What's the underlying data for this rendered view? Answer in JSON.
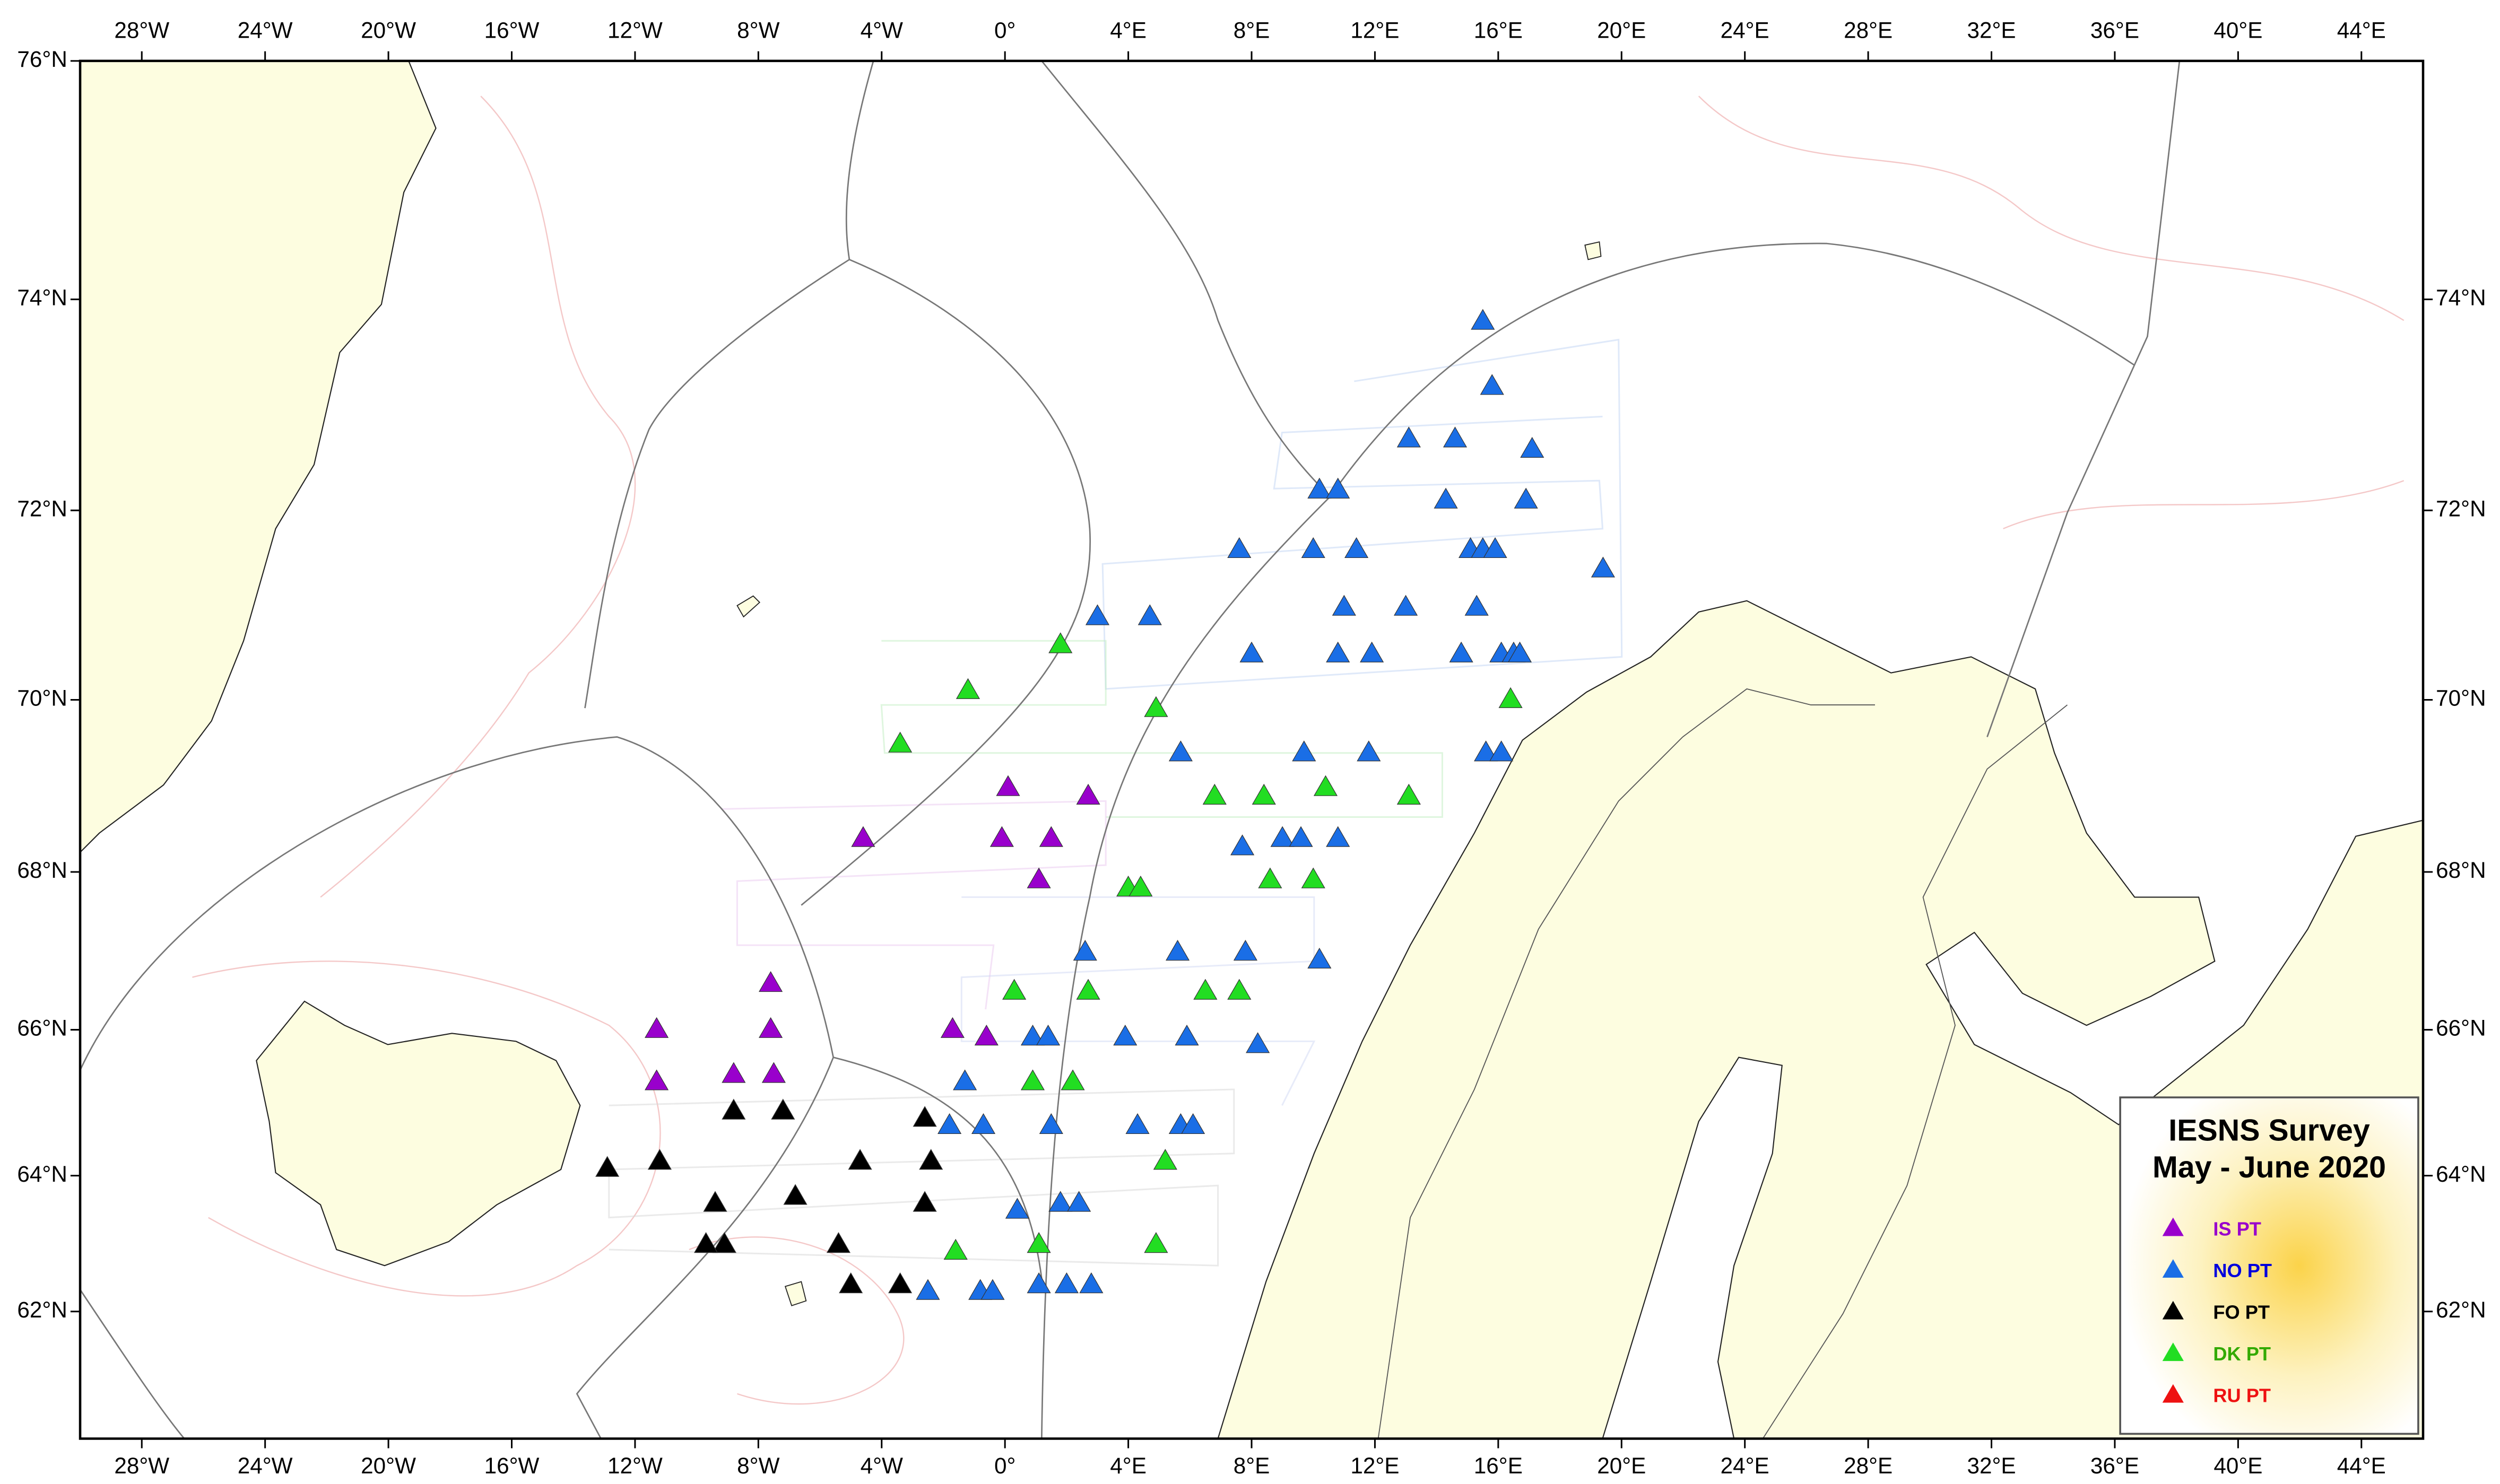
{
  "map": {
    "lon_range": [
      -30,
      46
    ],
    "lat_range": [
      60,
      76
    ],
    "lon_ticks": [
      {
        "value": -28,
        "label": "28°W"
      },
      {
        "value": -24,
        "label": "24°W"
      },
      {
        "value": -20,
        "label": "20°W"
      },
      {
        "value": -16,
        "label": "16°W"
      },
      {
        "value": -12,
        "label": "12°W"
      },
      {
        "value": -8,
        "label": "8°W"
      },
      {
        "value": -4,
        "label": "4°W"
      },
      {
        "value": 0,
        "label": "0°"
      },
      {
        "value": 4,
        "label": "4°E"
      },
      {
        "value": 8,
        "label": "8°E"
      },
      {
        "value": 12,
        "label": "12°E"
      },
      {
        "value": 16,
        "label": "16°E"
      },
      {
        "value": 20,
        "label": "20°E"
      },
      {
        "value": 24,
        "label": "24°E"
      },
      {
        "value": 28,
        "label": "28°E"
      },
      {
        "value": 32,
        "label": "32°E"
      },
      {
        "value": 36,
        "label": "36°E"
      },
      {
        "value": 40,
        "label": "40°E"
      },
      {
        "value": 44,
        "label": "44°E"
      }
    ],
    "lat_ticks_left": [
      {
        "value": 76,
        "label": "76°N"
      },
      {
        "value": 74,
        "label": "74°N"
      },
      {
        "value": 72,
        "label": "72°N"
      },
      {
        "value": 70,
        "label": "70°N"
      },
      {
        "value": 68,
        "label": "68°N"
      },
      {
        "value": 66,
        "label": "66°N"
      },
      {
        "value": 64,
        "label": "64°N"
      },
      {
        "value": 62,
        "label": "62°N"
      }
    ],
    "lat_ticks_right": [
      {
        "value": 74,
        "label": "74°N"
      },
      {
        "value": 72,
        "label": "72°N"
      },
      {
        "value": 70,
        "label": "70°N"
      },
      {
        "value": 68,
        "label": "68°N"
      },
      {
        "value": 66,
        "label": "66°N"
      },
      {
        "value": 64,
        "label": "64°N"
      },
      {
        "value": 62,
        "label": "62°N"
      }
    ],
    "legend": {
      "title": [
        "IESNS Survey",
        "May - June 2020"
      ]
    },
    "stations": [
      {
        "name": "IS PT",
        "color": "#9900cc",
        "label_color": "#9900cc",
        "points": [
          [
            0.1,
            69.0
          ],
          [
            2.7,
            68.9
          ],
          [
            -4.6,
            68.4
          ],
          [
            -0.1,
            68.4
          ],
          [
            1.5,
            68.4
          ],
          [
            1.1,
            67.9
          ],
          [
            -7.6,
            66.6
          ],
          [
            -7.6,
            66.0
          ],
          [
            -11.3,
            66.0
          ],
          [
            -7.5,
            65.4
          ],
          [
            -8.8,
            65.4
          ],
          [
            -11.3,
            65.3
          ],
          [
            -1.7,
            66.0
          ],
          [
            -0.6,
            65.9
          ]
        ]
      },
      {
        "name": "NO PT",
        "color": "#1a6ee6",
        "label_color": "#0000dd",
        "points": [
          [
            15.5,
            73.8
          ],
          [
            15.8,
            73.2
          ],
          [
            13.1,
            72.7
          ],
          [
            14.6,
            72.7
          ],
          [
            17.1,
            72.6
          ],
          [
            14.3,
            72.1
          ],
          [
            10.2,
            72.2
          ],
          [
            10.8,
            72.2
          ],
          [
            16.9,
            72.1
          ],
          [
            7.6,
            71.6
          ],
          [
            10.0,
            71.6
          ],
          [
            11.4,
            71.6
          ],
          [
            15.1,
            71.6
          ],
          [
            15.5,
            71.6
          ],
          [
            15.9,
            71.6
          ],
          [
            19.4,
            71.4
          ],
          [
            3.0,
            70.9
          ],
          [
            4.7,
            70.9
          ],
          [
            11.0,
            71.0
          ],
          [
            13.0,
            71.0
          ],
          [
            15.3,
            71.0
          ],
          [
            8.0,
            70.5
          ],
          [
            10.8,
            70.5
          ],
          [
            11.9,
            70.5
          ],
          [
            14.8,
            70.5
          ],
          [
            16.1,
            70.5
          ],
          [
            16.5,
            70.5
          ],
          [
            16.7,
            70.5
          ],
          [
            5.7,
            69.4
          ],
          [
            9.7,
            69.4
          ],
          [
            11.8,
            69.4
          ],
          [
            15.6,
            69.4
          ],
          [
            16.1,
            69.4
          ],
          [
            7.7,
            68.3
          ],
          [
            9.0,
            68.4
          ],
          [
            9.6,
            68.4
          ],
          [
            10.8,
            68.4
          ],
          [
            2.6,
            67.0
          ],
          [
            5.6,
            67.0
          ],
          [
            7.8,
            67.0
          ],
          [
            10.2,
            66.9
          ],
          [
            3.9,
            65.9
          ],
          [
            0.9,
            65.9
          ],
          [
            1.4,
            65.9
          ],
          [
            5.9,
            65.9
          ],
          [
            8.2,
            65.8
          ],
          [
            -1.3,
            65.3
          ],
          [
            -1.8,
            64.7
          ],
          [
            -0.7,
            64.7
          ],
          [
            1.5,
            64.7
          ],
          [
            4.3,
            64.7
          ],
          [
            5.7,
            64.7
          ],
          [
            6.1,
            64.7
          ],
          [
            0.4,
            63.5
          ],
          [
            1.8,
            63.6
          ],
          [
            2.4,
            63.6
          ],
          [
            -2.5,
            62.3
          ],
          [
            -0.8,
            62.3
          ],
          [
            -0.4,
            62.3
          ],
          [
            1.1,
            62.4
          ],
          [
            2.0,
            62.4
          ],
          [
            2.8,
            62.4
          ]
        ]
      },
      {
        "name": "FO PT",
        "color": "#000000",
        "label_color": "#000000",
        "points": [
          [
            -7.2,
            64.9
          ],
          [
            -8.8,
            64.9
          ],
          [
            -2.6,
            64.8
          ],
          [
            -4.7,
            64.2
          ],
          [
            -2.4,
            64.2
          ],
          [
            -11.2,
            64.2
          ],
          [
            -12.9,
            64.1
          ],
          [
            -6.8,
            63.7
          ],
          [
            -9.4,
            63.6
          ],
          [
            -2.6,
            63.6
          ],
          [
            -5.4,
            63.0
          ],
          [
            -9.1,
            63.0
          ],
          [
            -9.7,
            63.0
          ],
          [
            -5.0,
            62.4
          ],
          [
            -3.4,
            62.4
          ]
        ]
      },
      {
        "name": "DK PT",
        "color": "#22dd22",
        "label_color": "#33aa00",
        "points": [
          [
            1.8,
            70.6
          ],
          [
            -1.2,
            70.1
          ],
          [
            -3.4,
            69.5
          ],
          [
            4.9,
            69.9
          ],
          [
            16.4,
            70.0
          ],
          [
            6.8,
            68.9
          ],
          [
            8.4,
            68.9
          ],
          [
            10.4,
            69.0
          ],
          [
            13.1,
            68.9
          ],
          [
            4.0,
            67.8
          ],
          [
            4.4,
            67.8
          ],
          [
            8.6,
            67.9
          ],
          [
            10.0,
            67.9
          ],
          [
            0.3,
            66.5
          ],
          [
            2.7,
            66.5
          ],
          [
            6.5,
            66.5
          ],
          [
            7.6,
            66.5
          ],
          [
            0.9,
            65.3
          ],
          [
            2.2,
            65.3
          ],
          [
            5.2,
            64.2
          ],
          [
            -1.6,
            62.9
          ],
          [
            1.1,
            63.0
          ],
          [
            4.9,
            63.0
          ]
        ]
      },
      {
        "name": "RU PT",
        "color": "#ee1111",
        "label_color": "#ee1111",
        "points": []
      }
    ]
  }
}
